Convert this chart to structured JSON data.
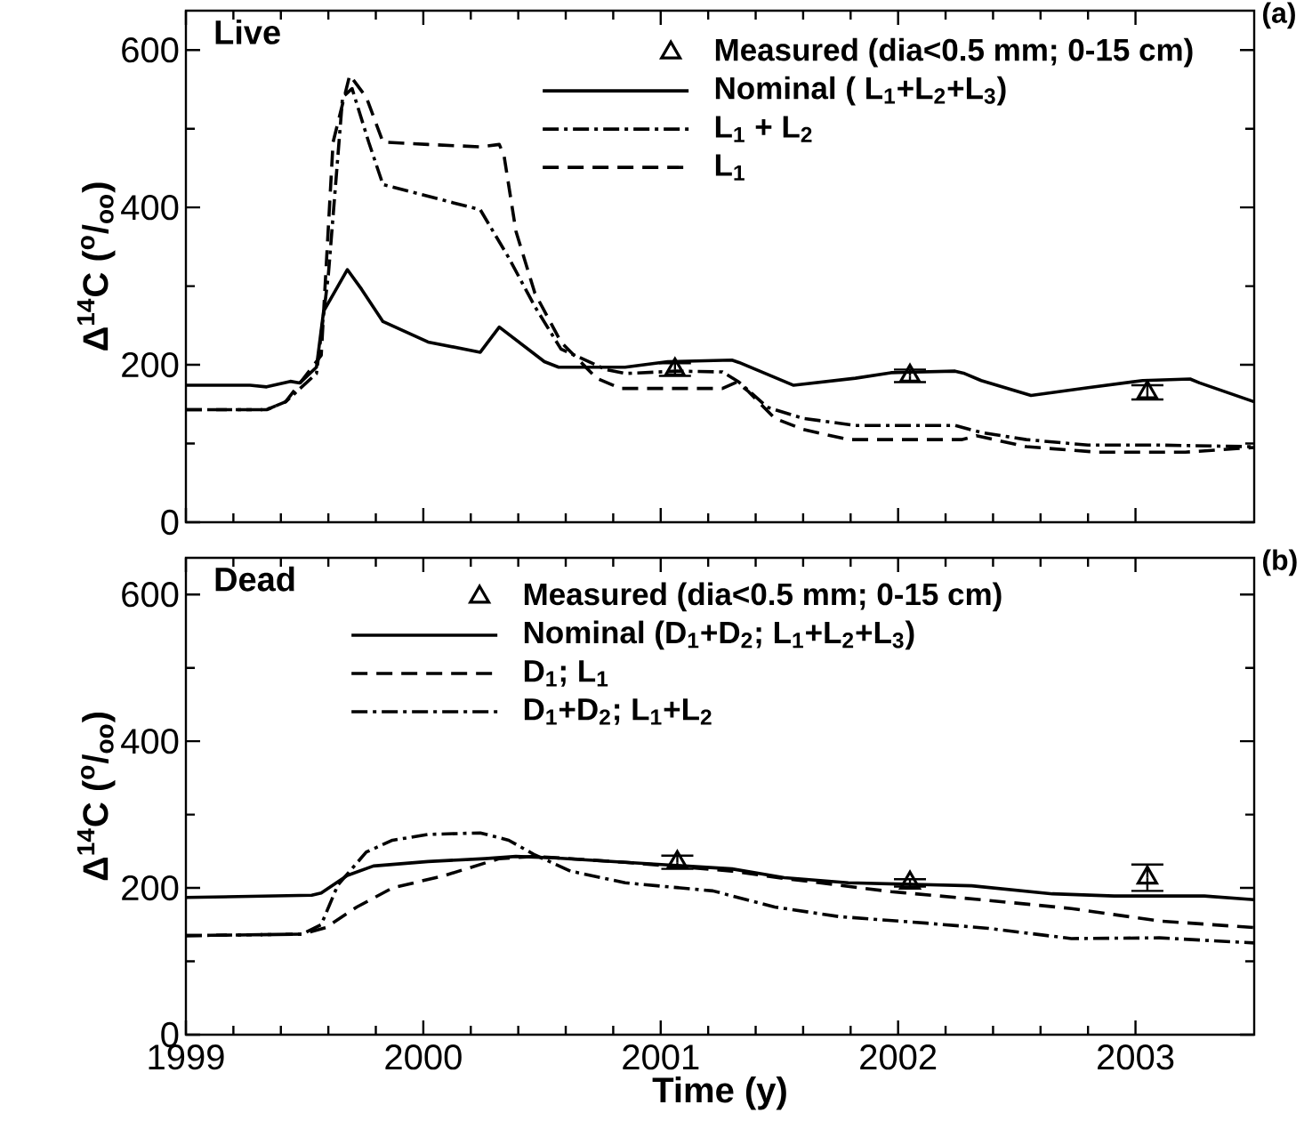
{
  "chart_data": [
    {
      "type": "line",
      "title": "(a)",
      "annotations": [
        "Live"
      ],
      "ylabel": "Δ$^{14}$C ($^{o}$/$_{oo}$)",
      "xlim": [
        1999,
        2003.5
      ],
      "ylim": [
        0,
        650
      ],
      "xticks": [
        1999,
        2000,
        2001,
        2002,
        2003
      ],
      "yticks": [
        0,
        200,
        400,
        600
      ],
      "tick_labels": "y",
      "legend": "top right",
      "grid": false,
      "series": [
        {
          "name": "Measured (dia<0.5 mm; 0-15 cm)",
          "type": "scatter",
          "marker": "triangle",
          "color": "#000000",
          "x": [
            2001.06,
            2002.05,
            2003.05
          ],
          "values": [
            194,
            186,
            165
          ],
          "errors": [
            8,
            8,
            9
          ]
        },
        {
          "name": "Nominal ( L$_{1}$+L$_{2}$+L$_{3}$)",
          "color": "#000000",
          "line_style": "solid",
          "x": [
            1999,
            1999.27,
            1999.34,
            1999.44,
            1999.48,
            1999.55,
            1999.58,
            1999.68,
            1999.74,
            1999.83,
            2000.02,
            2000.24,
            2000.32,
            2000.51,
            2000.57,
            2000.85,
            2001.03,
            2001.3,
            2001.33,
            2001.56,
            2001.82,
            2001.97,
            2002.24,
            2002.28,
            2002.35,
            2002.56,
            2002.8,
            2003.03,
            2003.23,
            2003.27,
            2003.5
          ],
          "values": [
            174,
            174,
            172,
            179,
            177,
            197,
            268,
            321,
            296,
            255,
            229,
            216,
            248,
            204,
            197,
            197,
            204,
            206,
            203,
            174,
            183,
            190,
            192,
            189,
            180,
            161,
            171,
            180,
            182,
            177,
            153
          ]
        },
        {
          "name": "L$_{1}$ + L$_{2}$",
          "color": "#000000",
          "line_style": "dashdot",
          "x": [
            1999,
            1999.34,
            1999.42,
            1999.55,
            1999.6,
            1999.66,
            1999.7,
            1999.77,
            1999.83,
            2000.24,
            2000.36,
            2000.47,
            2000.58,
            2000.77,
            2000.85,
            2001.07,
            2001.26,
            2001.33,
            2001.45,
            2001.6,
            2001.82,
            2002.24,
            2002.35,
            2002.54,
            2002.8,
            2003.1,
            2003.5
          ],
          "values": [
            143,
            143,
            153,
            189,
            314,
            540,
            551,
            483,
            429,
            397,
            336,
            274,
            220,
            194,
            189,
            192,
            191,
            178,
            146,
            132,
            123,
            123,
            114,
            105,
            98,
            98,
            96
          ]
        },
        {
          "name": "L$_{1}$",
          "color": "#000000",
          "line_style": "dashed",
          "x": [
            1999,
            1999.34,
            1999.42,
            1999.57,
            1999.62,
            1999.69,
            1999.76,
            1999.83,
            2000.02,
            2000.24,
            2000.32,
            2000.34,
            2000.39,
            2000.47,
            2000.58,
            2000.73,
            2000.83,
            2001.26,
            2001.32,
            2001.37,
            2001.48,
            2001.6,
            2001.79,
            2002.27,
            2002.33,
            2002.54,
            2002.84,
            2003.21,
            2003.5
          ],
          "values": [
            143,
            143,
            153,
            212,
            483,
            568,
            540,
            483,
            480,
            477,
            480,
            466,
            370,
            291,
            229,
            183,
            170,
            170,
            178,
            166,
            132,
            118,
            105,
            105,
            110,
            96,
            89,
            89,
            95
          ]
        }
      ]
    },
    {
      "type": "line",
      "title": "(b)",
      "annotations": [
        "Dead"
      ],
      "xlabel": "Time (y)",
      "ylabel": "Δ$^{14}$C ($^{o}$/$_{oo}$)",
      "xlim": [
        1999,
        2003.5
      ],
      "ylim": [
        0,
        650
      ],
      "xticks": [
        1999,
        2000,
        2001,
        2002,
        2003
      ],
      "yticks": [
        0,
        200,
        400,
        600
      ],
      "legend": "top",
      "grid": false,
      "series": [
        {
          "name": "Measured (dia<0.5 mm; 0-15 cm)",
          "type": "scatter",
          "marker": "triangle",
          "color": "#000000",
          "x": [
            2001.07,
            2002.05,
            2003.05
          ],
          "values": [
            235,
            207,
            214
          ],
          "errors": [
            9,
            5,
            18
          ]
        },
        {
          "name": "Nominal (D$_{1}$+D$_{2}$; L$_{1}$+L$_{2}$+L$_{3}$)",
          "color": "#000000",
          "line_style": "solid",
          "x": [
            1999,
            1999.53,
            1999.57,
            1999.68,
            1999.79,
            2000.02,
            2000.26,
            2000.39,
            2000.55,
            2000.85,
            2001.3,
            2001.52,
            2001.79,
            2002.31,
            2002.65,
            2002.91,
            2003.29,
            2003.5
          ],
          "values": [
            187,
            190,
            193,
            217,
            230,
            236,
            240,
            243,
            241,
            235,
            226,
            214,
            207,
            203,
            192,
            189,
            189,
            184
          ]
        },
        {
          "name": "D$_{1}$; L$_{1}$",
          "color": "#000000",
          "line_style": "dashed",
          "x": [
            1999,
            1999.49,
            1999.59,
            1999.72,
            1999.87,
            2000.09,
            2000.32,
            2000.47,
            2000.85,
            2001.3,
            2001.52,
            2001.97,
            2002.35,
            2002.73,
            2003.1,
            2003.5
          ],
          "values": [
            135,
            137,
            146,
            174,
            200,
            217,
            240,
            243,
            235,
            223,
            213,
            195,
            184,
            172,
            155,
            146
          ]
        },
        {
          "name": "D$_{1}$+D$_{2}$; L$_{1}$+L$_{2}$",
          "color": "#000000",
          "line_style": "dashdot",
          "x": [
            1999,
            1999.49,
            1999.57,
            1999.64,
            1999.76,
            1999.87,
            2000.02,
            2000.24,
            2000.36,
            2000.47,
            2000.62,
            2000.85,
            2001.22,
            2001.48,
            2001.75,
            2002.12,
            2002.38,
            2002.73,
            2003.1,
            2003.5
          ],
          "values": [
            135,
            137,
            150,
            204,
            249,
            265,
            273,
            275,
            265,
            245,
            223,
            207,
            196,
            174,
            161,
            152,
            145,
            131,
            132,
            125
          ]
        }
      ]
    }
  ]
}
